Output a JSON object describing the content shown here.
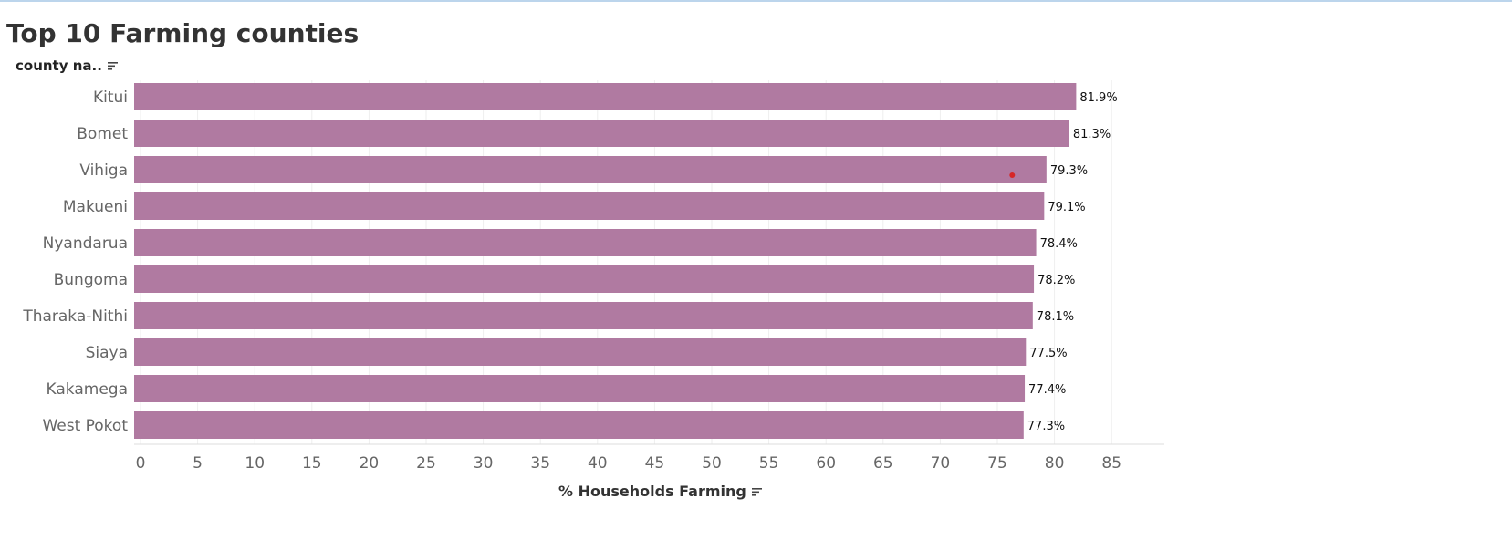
{
  "title": "Top 10 Farming counties",
  "row_header": "county na..",
  "chart_data": {
    "type": "bar",
    "orientation": "horizontal",
    "categories": [
      "Kitui",
      "Bomet",
      "Vihiga",
      "Makueni",
      "Nyandarua",
      "Bungoma",
      "Tharaka-Nithi",
      "Siaya",
      "Kakamega",
      "West Pokot"
    ],
    "values": [
      81.9,
      81.3,
      79.3,
      79.1,
      78.4,
      78.2,
      78.1,
      77.5,
      77.4,
      77.3
    ],
    "value_labels": [
      "81.9%",
      "81.3%",
      "79.3%",
      "79.1%",
      "78.4%",
      "78.2%",
      "78.1%",
      "77.5%",
      "77.4%",
      "77.3%"
    ],
    "xlabel": "% Households Farming",
    "ylabel": "county na..",
    "xticks": [
      0,
      5,
      10,
      15,
      20,
      25,
      30,
      35,
      40,
      45,
      50,
      55,
      60,
      65,
      70,
      75,
      80,
      85
    ],
    "xlim": [
      0,
      90
    ],
    "grid": true,
    "bar_color": "#b07aa1",
    "marker": {
      "value": 76.3,
      "category": "Vihiga",
      "color": "#d62728"
    }
  }
}
